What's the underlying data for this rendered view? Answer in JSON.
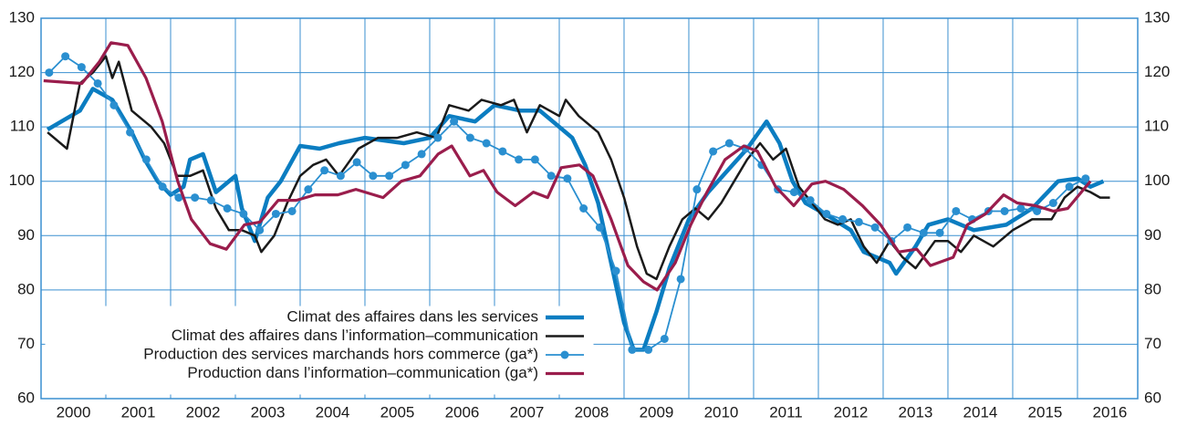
{
  "chart_data": {
    "type": "line",
    "xlim": [
      2000,
      2016.93
    ],
    "xticks": [
      {
        "value": 2000.5,
        "label": "2000"
      },
      {
        "value": 2001.5,
        "label": "2001"
      },
      {
        "value": 2002.5,
        "label": "2002"
      },
      {
        "value": 2003.5,
        "label": "2003"
      },
      {
        "value": 2004.5,
        "label": "2004"
      },
      {
        "value": 2005.5,
        "label": "2005"
      },
      {
        "value": 2006.5,
        "label": "2006"
      },
      {
        "value": 2007.5,
        "label": "2007"
      },
      {
        "value": 2008.5,
        "label": "2008"
      },
      {
        "value": 2009.5,
        "label": "2009"
      },
      {
        "value": 2010.5,
        "label": "2010"
      },
      {
        "value": 2011.5,
        "label": "2011"
      },
      {
        "value": 2012.5,
        "label": "2012"
      },
      {
        "value": 2013.5,
        "label": "2013"
      },
      {
        "value": 2014.5,
        "label": "2014"
      },
      {
        "value": 2015.5,
        "label": "2015"
      },
      {
        "value": 2016.5,
        "label": "2016"
      }
    ],
    "xgrid": [
      2001,
      2002,
      2003,
      2004,
      2005,
      2006,
      2007,
      2008,
      2009,
      2010,
      2011,
      2012,
      2013,
      2014,
      2015,
      2016
    ],
    "ylim": [
      60,
      130
    ],
    "yticks": [
      60,
      70,
      80,
      90,
      100,
      110,
      120,
      130
    ],
    "y2lim": [
      60,
      130
    ],
    "y2ticks": [
      60,
      70,
      80,
      90,
      100,
      110,
      120,
      130
    ],
    "grid": true,
    "legend": "bottom-left",
    "series": [
      {
        "name": "Climat des affaires dans les services",
        "color": "#0b7dc1",
        "width": 4.5,
        "marker": false,
        "x": [
          2000.1,
          2000.6,
          2000.8,
          2001.1,
          2001.2,
          2001.4,
          2001.6,
          2001.8,
          2002.0,
          2002.2,
          2002.3,
          2002.5,
          2002.7,
          2003.0,
          2003.1,
          2003.3,
          2003.5,
          2003.7,
          2004.0,
          2004.3,
          2004.6,
          2005.0,
          2005.6,
          2006.0,
          2006.3,
          2006.7,
          2007.0,
          2007.4,
          2007.7,
          2008.0,
          2008.2,
          2008.4,
          2008.6,
          2008.8,
          2009.0,
          2009.15,
          2009.3,
          2009.5,
          2009.7,
          2010.0,
          2010.3,
          2010.6,
          2010.9,
          2011.2,
          2011.4,
          2011.6,
          2011.8,
          2012.1,
          2012.5,
          2012.7,
          2013.1,
          2013.2,
          2013.5,
          2013.7,
          2014.0,
          2014.4,
          2014.9,
          2015.3,
          2015.7,
          2016.0,
          2016.2,
          2016.4
        ],
        "values": [
          109.5,
          113,
          117,
          115,
          113,
          109,
          104,
          100,
          97.5,
          99,
          104,
          105,
          98,
          101,
          95,
          89,
          97,
          100,
          106.5,
          106,
          107,
          108,
          107,
          108,
          112,
          111,
          114,
          113,
          113,
          110,
          108,
          103,
          96,
          85,
          74,
          69,
          69,
          76,
          84,
          93,
          98,
          102,
          106,
          111,
          107,
          100,
          96,
          94,
          91,
          87,
          85,
          83,
          88,
          92,
          93,
          91,
          92,
          95,
          100,
          100.5,
          99,
          100
        ]
      },
      {
        "name": "Climat des affaires dans l’information–communication",
        "color": "#1a1a1a",
        "width": 2.5,
        "marker": false,
        "x": [
          2000.1,
          2000.4,
          2000.6,
          2000.8,
          2001.0,
          2001.1,
          2001.2,
          2001.4,
          2001.7,
          2001.9,
          2002.1,
          2002.3,
          2002.5,
          2002.7,
          2002.9,
          2003.1,
          2003.3,
          2003.4,
          2003.6,
          2003.8,
          2004.0,
          2004.2,
          2004.4,
          2004.6,
          2004.9,
          2005.2,
          2005.5,
          2005.8,
          2006.1,
          2006.3,
          2006.6,
          2006.8,
          2007.1,
          2007.3,
          2007.5,
          2007.7,
          2008.0,
          2008.1,
          2008.3,
          2008.6,
          2008.8,
          2009.0,
          2009.2,
          2009.35,
          2009.5,
          2009.7,
          2009.9,
          2010.1,
          2010.3,
          2010.5,
          2010.7,
          2010.9,
          2011.1,
          2011.3,
          2011.5,
          2011.7,
          2011.9,
          2012.1,
          2012.3,
          2012.5,
          2012.7,
          2012.9,
          2013.1,
          2013.3,
          2013.5,
          2013.8,
          2014.0,
          2014.2,
          2014.4,
          2014.7,
          2015.0,
          2015.3,
          2015.6,
          2015.8,
          2016.0,
          2016.2,
          2016.35,
          2016.5
        ],
        "values": [
          109,
          106,
          118,
          120,
          123,
          119,
          122,
          113,
          110,
          107,
          101,
          101,
          102,
          95,
          91,
          91,
          90,
          87,
          90,
          96,
          101,
          103,
          104,
          101,
          106,
          108,
          108,
          109,
          108,
          114,
          113,
          115,
          114,
          115,
          109,
          114,
          112,
          115,
          112,
          109,
          104,
          97,
          88,
          83,
          82,
          88,
          93,
          95,
          93,
          96,
          100,
          104,
          107,
          104,
          106,
          99,
          96,
          93,
          92,
          93,
          88,
          85,
          89,
          86,
          84,
          89,
          89,
          87,
          90,
          88,
          91,
          93,
          93,
          97,
          99,
          98,
          97,
          97
        ]
      },
      {
        "name": "Production des services marchands hors commerce (ga*)",
        "color": "#2a8fd0",
        "width": 1.8,
        "marker": true,
        "x": [
          2000.125,
          2000.375,
          2000.625,
          2000.875,
          2001.125,
          2001.375,
          2001.625,
          2001.875,
          2002.125,
          2002.375,
          2002.625,
          2002.875,
          2003.125,
          2003.375,
          2003.625,
          2003.875,
          2004.125,
          2004.375,
          2004.625,
          2004.875,
          2005.125,
          2005.375,
          2005.625,
          2005.875,
          2006.125,
          2006.375,
          2006.625,
          2006.875,
          2007.125,
          2007.375,
          2007.625,
          2007.875,
          2008.125,
          2008.375,
          2008.625,
          2008.875,
          2009.125,
          2009.375,
          2009.625,
          2009.875,
          2010.125,
          2010.375,
          2010.625,
          2010.875,
          2011.125,
          2011.375,
          2011.625,
          2011.875,
          2012.125,
          2012.375,
          2012.625,
          2012.875,
          2013.125,
          2013.375,
          2013.625,
          2013.875,
          2014.125,
          2014.375,
          2014.625,
          2014.875,
          2015.125,
          2015.375,
          2015.625,
          2015.875,
          2016.125
        ],
        "values": [
          120,
          123,
          121,
          118,
          114,
          109,
          104,
          99,
          97,
          97,
          96.5,
          95,
          94,
          91,
          94,
          94.5,
          98.5,
          102,
          101,
          103.5,
          101,
          101,
          103,
          105,
          108,
          111,
          108,
          107,
          105.5,
          104,
          104,
          101,
          100.5,
          95,
          91.5,
          83.5,
          69,
          69,
          71,
          82,
          98.5,
          105.5,
          107,
          106,
          103,
          98.5,
          98,
          96.5,
          94,
          93,
          92.5,
          91.5,
          89,
          91.5,
          90.5,
          90.5,
          94.5,
          93,
          94.5,
          94.5,
          95,
          94.5,
          96,
          99,
          100.5
        ]
      },
      {
        "name": "Production dans l’information–communication (ga*)",
        "color": "#9a1d4c",
        "width": 3.2,
        "marker": false,
        "x": [
          2000.04,
          2000.63,
          2000.9,
          2001.08,
          2001.34,
          2001.62,
          2001.87,
          2002.11,
          2002.32,
          2002.61,
          2002.86,
          2003.14,
          2003.38,
          2003.66,
          2003.94,
          2004.23,
          2004.58,
          2004.86,
          2005.28,
          2005.56,
          2005.85,
          2006.13,
          2006.34,
          2006.62,
          2006.83,
          2007.04,
          2007.32,
          2007.6,
          2007.82,
          2008.03,
          2008.31,
          2008.52,
          2008.8,
          2009.06,
          2009.3,
          2009.51,
          2009.79,
          2010.03,
          2010.28,
          2010.56,
          2010.85,
          2011.06,
          2011.34,
          2011.62,
          2011.9,
          2012.11,
          2012.39,
          2012.68,
          2012.96,
          2013.24,
          2013.52,
          2013.73,
          2014.08,
          2014.3,
          2014.58,
          2014.86,
          2015.07,
          2015.35,
          2015.63,
          2015.85,
          2016.06,
          2016.2
        ],
        "values": [
          118.5,
          118,
          122,
          125.5,
          125,
          119,
          111,
          100,
          93,
          88.5,
          87.5,
          92,
          92.5,
          96.5,
          96.5,
          97.5,
          97.5,
          98.5,
          97,
          100,
          101,
          105,
          106.5,
          101,
          102,
          98,
          95.5,
          98,
          97,
          102.5,
          103,
          101,
          93,
          84.5,
          81.5,
          80,
          85,
          92,
          98,
          104,
          106.5,
          105.5,
          99,
          95.5,
          99.5,
          100,
          98.5,
          95.5,
          92,
          87,
          87.5,
          84.5,
          86,
          92,
          94,
          97.5,
          96,
          95.5,
          94.5,
          95,
          98,
          100
        ]
      }
    ]
  }
}
